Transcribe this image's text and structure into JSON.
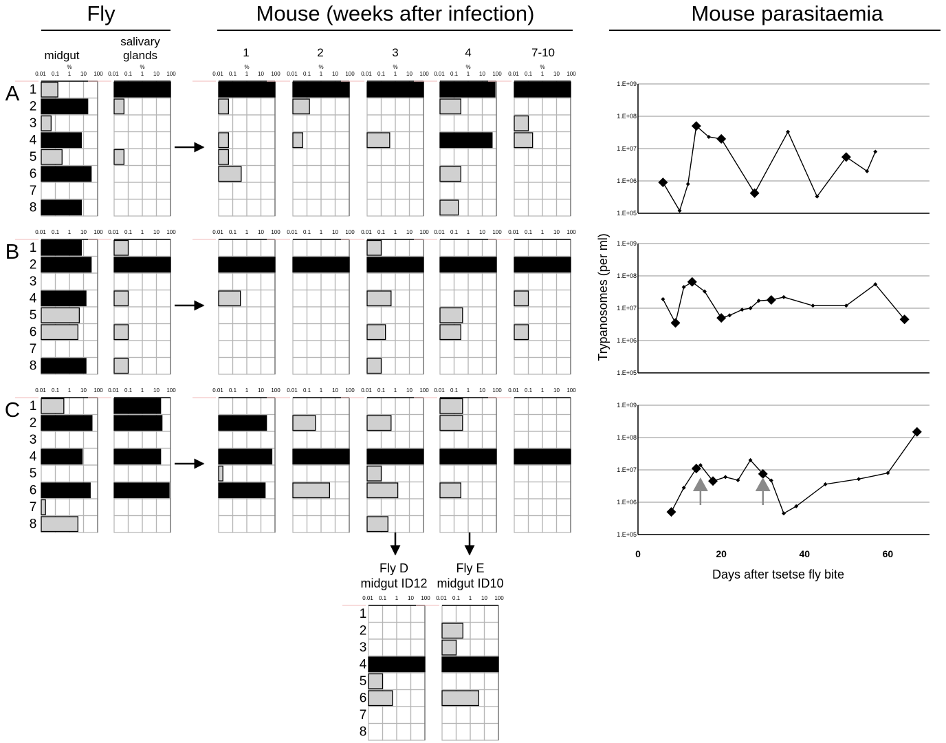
{
  "figure": {
    "headers": {
      "fly": "Fly",
      "mouse": "Mouse (weeks after infection)",
      "parasitaemia": "Mouse parasitaemia"
    },
    "fly_columns": [
      "midgut",
      "salivary\nglands"
    ],
    "mouse_columns": [
      "1",
      "2",
      "3",
      "4",
      "7-10"
    ],
    "percent_symbol": "%",
    "log_ticks": [
      "0.01",
      "0.1",
      "1",
      "10",
      "100"
    ],
    "row_labels": [
      "1",
      "2",
      "3",
      "4",
      "5",
      "6",
      "7",
      "8"
    ],
    "panel_labels": [
      "A",
      "B",
      "C"
    ],
    "bottom_columns": [
      {
        "line1": "Fly D",
        "line2": "midgut ID12"
      },
      {
        "line1": "Fly E",
        "line2": "midgut ID10"
      }
    ]
  },
  "chart_data": [
    {
      "type": "bar",
      "name": "clone-frequency-grids",
      "scale": "log",
      "xlim": [
        0.01,
        100
      ],
      "categories": [
        "1",
        "2",
        "3",
        "4",
        "5",
        "6",
        "7",
        "8"
      ],
      "colors": {
        "dark": "#000000",
        "light": "#d0d0d0"
      },
      "panels": [
        {
          "panel": "A",
          "columns": [
            {
              "column": "midgut",
              "values": [
                0.15,
                20,
                0.05,
                7,
                0.3,
                35,
                null,
                7
              ],
              "shade": [
                "light",
                "dark",
                "light",
                "dark",
                "light",
                "dark",
                null,
                "dark"
              ]
            },
            {
              "column": "salivary glands",
              "values": [
                100,
                0.05,
                null,
                null,
                0.05,
                null,
                null,
                null
              ],
              "shade": [
                "dark",
                "light",
                null,
                null,
                "light",
                null,
                null,
                null
              ]
            },
            {
              "column": "1",
              "values": [
                100,
                0.05,
                null,
                0.05,
                0.05,
                0.4,
                null,
                null
              ],
              "shade": [
                "dark",
                "light",
                null,
                "light",
                "light",
                "light",
                null,
                null
              ]
            },
            {
              "column": "2",
              "values": [
                100,
                0.15,
                null,
                0.05,
                null,
                null,
                null,
                null
              ],
              "shade": [
                "dark",
                "light",
                null,
                "light",
                null,
                null,
                null,
                null
              ]
            },
            {
              "column": "3",
              "values": [
                100,
                null,
                null,
                0.4,
                null,
                null,
                null,
                null
              ],
              "shade": [
                "dark",
                null,
                null,
                "light",
                null,
                null,
                null,
                null
              ]
            },
            {
              "column": "4",
              "values": [
                80,
                0.3,
                null,
                50,
                null,
                0.3,
                null,
                0.2
              ],
              "shade": [
                "dark",
                "light",
                null,
                "dark",
                null,
                "light",
                null,
                "light"
              ]
            },
            {
              "column": "7-10",
              "values": [
                100,
                null,
                0.1,
                0.2,
                null,
                null,
                null,
                null
              ],
              "shade": [
                "dark",
                null,
                "light",
                "light",
                null,
                null,
                null,
                null
              ]
            }
          ]
        },
        {
          "panel": "B",
          "columns": [
            {
              "column": "midgut",
              "values": [
                7,
                35,
                null,
                15,
                5,
                4,
                null,
                15
              ],
              "shade": [
                "dark",
                "dark",
                null,
                "dark",
                "light",
                "light",
                null,
                "dark"
              ]
            },
            {
              "column": "salivary glands",
              "values": [
                0.1,
                100,
                null,
                0.1,
                null,
                0.1,
                null,
                0.1
              ],
              "shade": [
                "light",
                "dark",
                null,
                "light",
                null,
                "light",
                null,
                "light"
              ]
            },
            {
              "column": "1",
              "values": [
                null,
                100,
                null,
                0.35,
                null,
                null,
                null,
                null
              ],
              "shade": [
                null,
                "dark",
                null,
                "light",
                null,
                null,
                null,
                null
              ]
            },
            {
              "column": "2",
              "values": [
                null,
                100,
                null,
                null,
                null,
                null,
                null,
                null
              ],
              "shade": [
                null,
                "dark",
                null,
                null,
                null,
                null,
                null,
                null
              ]
            },
            {
              "column": "3",
              "values": [
                0.1,
                100,
                null,
                0.5,
                null,
                0.2,
                null,
                0.1
              ],
              "shade": [
                "light",
                "dark",
                null,
                "light",
                null,
                "light",
                null,
                "light"
              ]
            },
            {
              "column": "4",
              "values": [
                null,
                100,
                null,
                null,
                0.4,
                0.3,
                null,
                null
              ],
              "shade": [
                null,
                "dark",
                null,
                null,
                "light",
                "light",
                null,
                null
              ]
            },
            {
              "column": "7-10",
              "values": [
                null,
                100,
                null,
                0.1,
                null,
                0.1,
                null,
                null
              ],
              "shade": [
                null,
                "dark",
                null,
                "light",
                null,
                "light",
                null,
                null
              ]
            }
          ]
        },
        {
          "panel": "C",
          "columns": [
            {
              "column": "midgut",
              "values": [
                0.4,
                40,
                null,
                8,
                null,
                30,
                0.02,
                4
              ],
              "shade": [
                "light",
                "dark",
                null,
                "dark",
                null,
                "dark",
                "light",
                "light"
              ]
            },
            {
              "column": "salivary glands",
              "values": [
                20,
                25,
                null,
                20,
                null,
                80,
                null,
                null
              ],
              "shade": [
                "dark",
                "dark",
                null,
                "dark",
                null,
                "dark",
                null,
                null
              ]
            },
            {
              "column": "1",
              "values": [
                null,
                25,
                null,
                60,
                0.02,
                20,
                null,
                null
              ],
              "shade": [
                null,
                "dark",
                null,
                "dark",
                "light",
                "dark",
                null,
                null
              ]
            },
            {
              "column": "2",
              "values": [
                null,
                0.4,
                null,
                100,
                null,
                4,
                null,
                null
              ],
              "shade": [
                null,
                "light",
                null,
                "dark",
                null,
                "light",
                null,
                null
              ]
            },
            {
              "column": "3",
              "values": [
                null,
                0.5,
                null,
                100,
                0.1,
                1.5,
                null,
                0.3
              ],
              "shade": [
                null,
                "light",
                null,
                "dark",
                "light",
                "light",
                null,
                "light"
              ]
            },
            {
              "column": "4",
              "values": [
                0.4,
                0.4,
                null,
                100,
                null,
                0.3,
                null,
                null
              ],
              "shade": [
                "light",
                "light",
                null,
                "dark",
                null,
                "light",
                null,
                null
              ]
            },
            {
              "column": "7-10",
              "values": [
                null,
                null,
                null,
                100,
                null,
                null,
                null,
                null
              ],
              "shade": [
                null,
                null,
                null,
                "dark",
                null,
                null,
                null,
                null
              ]
            }
          ]
        },
        {
          "panel": "C-bottom",
          "columns": [
            {
              "column": "Fly D midgut ID12",
              "values": [
                null,
                null,
                null,
                100,
                0.1,
                0.5,
                null,
                null
              ],
              "shade": [
                null,
                null,
                null,
                "dark",
                "light",
                "light",
                null,
                null
              ]
            },
            {
              "column": "Fly E midgut ID10",
              "values": [
                null,
                0.3,
                0.1,
                100,
                null,
                4,
                null,
                null
              ],
              "shade": [
                null,
                "light",
                "light",
                "dark",
                null,
                "light",
                null,
                null
              ]
            }
          ]
        }
      ]
    },
    {
      "type": "line",
      "name": "parasitaemia",
      "xlabel": "Days after tsetse fly bite",
      "ylabel": "Trypanosomes (per ml)",
      "x_ticks": [
        "0",
        "20",
        "40",
        "60"
      ],
      "xlim": [
        0,
        70
      ],
      "y_scale": "log",
      "ylim": [
        100000,
        1000000000
      ],
      "y_ticks": [
        "1.E+09",
        "1.E+08",
        "1.E+07",
        "1.E+06",
        "1.E+05"
      ],
      "gridlines": true,
      "panels": [
        {
          "panel": "A",
          "points": [
            [
              6,
              900000,
              "L"
            ],
            [
              10,
              120000,
              "S"
            ],
            [
              12,
              800000,
              "S"
            ],
            [
              14,
              50000000,
              "L"
            ],
            [
              17,
              23000000,
              "S"
            ],
            [
              20,
              20000000,
              "L"
            ],
            [
              28,
              420000,
              "L"
            ],
            [
              36,
              33000000,
              "S"
            ],
            [
              43,
              330000,
              "S"
            ],
            [
              50,
              5500000,
              "L"
            ],
            [
              55,
              2000000,
              "S"
            ],
            [
              57,
              8000000,
              "S"
            ]
          ]
        },
        {
          "panel": "B",
          "points": [
            [
              6,
              19000000,
              "S"
            ],
            [
              9,
              3500000,
              "L"
            ],
            [
              11,
              45000000,
              "S"
            ],
            [
              13,
              65000000,
              "L"
            ],
            [
              16,
              33000000,
              "S"
            ],
            [
              20,
              5000000,
              "L"
            ],
            [
              22,
              6000000,
              "S"
            ],
            [
              25,
              9000000,
              "S"
            ],
            [
              27,
              10000000,
              "S"
            ],
            [
              29,
              17000000,
              "S"
            ],
            [
              32,
              18000000,
              "L"
            ],
            [
              35,
              22000000,
              "S"
            ],
            [
              42,
              12000000,
              "S"
            ],
            [
              50,
              12000000,
              "S"
            ],
            [
              57,
              55000000,
              "S"
            ],
            [
              64,
              4500000,
              "L"
            ]
          ]
        },
        {
          "panel": "C",
          "points": [
            [
              8,
              500000,
              "L"
            ],
            [
              11,
              2800000,
              "S"
            ],
            [
              14,
              11000000,
              "L"
            ],
            [
              15,
              14000000,
              "S"
            ],
            [
              18,
              4500000,
              "L"
            ],
            [
              21,
              6000000,
              "S"
            ],
            [
              24,
              4800000,
              "S"
            ],
            [
              27,
              20000000,
              "S"
            ],
            [
              30,
              7500000,
              "L"
            ],
            [
              32,
              4700000,
              "S"
            ],
            [
              35,
              450000,
              "S"
            ],
            [
              38,
              750000,
              "S"
            ],
            [
              45,
              3600000,
              "S"
            ],
            [
              53,
              5200000,
              "S"
            ],
            [
              60,
              8000000,
              "S"
            ],
            [
              67,
              150000000,
              "L"
            ]
          ],
          "arrows_at_days": [
            15,
            30
          ]
        }
      ]
    }
  ]
}
